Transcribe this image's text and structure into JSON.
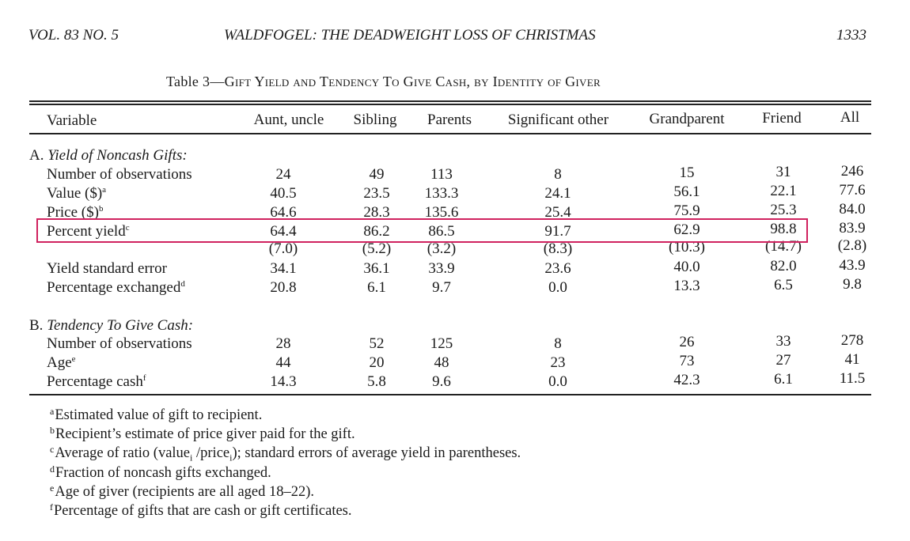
{
  "header": {
    "volume": "VOL. 83 NO. 5",
    "running_title": "WALDFOGEL: THE DEADWEIGHT LOSS OF CHRISTMAS",
    "page_number": "1333"
  },
  "caption": {
    "label": "Table 3",
    "dash": "—",
    "title": "Gift Yield and Tendency To Give Cash, by Identity of Giver"
  },
  "columns": [
    "Variable",
    "Aunt, uncle",
    "Sibling",
    "Parents",
    "Significant other",
    "Grandparent",
    "Friend",
    "All"
  ],
  "section_a": {
    "letter": "A. ",
    "title": "Yield of Noncash Gifts:",
    "rows": [
      {
        "label": "Number of observations",
        "sup": "",
        "values": [
          "24",
          "49",
          "113",
          "8",
          "15",
          "31",
          "246"
        ]
      },
      {
        "label": "Value ($)",
        "sup": "a",
        "values": [
          "40.5",
          "23.5",
          "133.3",
          "24.1",
          "56.1",
          "22.1",
          "77.6"
        ]
      },
      {
        "label": "Price ($)",
        "sup": "b",
        "values": [
          "64.6",
          "28.3",
          "135.6",
          "25.4",
          "75.9",
          "25.3",
          "84.0"
        ]
      },
      {
        "label": "Percent yield",
        "sup": "c",
        "values": [
          "64.4",
          "86.2",
          "86.5",
          "91.7",
          "62.9",
          "98.8",
          "83.9"
        ]
      },
      {
        "label": "",
        "sup": "",
        "values": [
          "(7.0)",
          "(5.2)",
          "(3.2)",
          "(8.3)",
          "(10.3)",
          "(14.7)",
          "(2.8)"
        ]
      },
      {
        "label": "Yield standard error",
        "sup": "",
        "values": [
          "34.1",
          "36.1",
          "33.9",
          "23.6",
          "40.0",
          "82.0",
          "43.9"
        ]
      },
      {
        "label": "Percentage exchanged",
        "sup": "d",
        "values": [
          "20.8",
          "6.1",
          "9.7",
          "0.0",
          "13.3",
          "6.5",
          "9.8"
        ]
      }
    ]
  },
  "section_b": {
    "letter": "B. ",
    "title": "Tendency To Give Cash:",
    "rows": [
      {
        "label": "Number of observations",
        "sup": "",
        "values": [
          "28",
          "52",
          "125",
          "8",
          "26",
          "33",
          "278"
        ]
      },
      {
        "label": "Age",
        "sup": "e",
        "values": [
          "44",
          "20",
          "48",
          "23",
          "73",
          "27",
          "41"
        ]
      },
      {
        "label": "Percentage cash",
        "sup": "f",
        "values": [
          "14.3",
          "5.8",
          "9.6",
          "0.0",
          "42.3",
          "6.1",
          "11.5"
        ]
      }
    ]
  },
  "footnotes": [
    {
      "mark": "a",
      "text": "Estimated value of gift to recipient."
    },
    {
      "mark": "b",
      "text": "Recipient’s estimate of price giver paid for the gift."
    },
    {
      "mark": "c",
      "text": "Average of ratio (value",
      "sub1": "i",
      "mid": " /price",
      "sub2": "i",
      "end": "); standard errors of average yield in parentheses."
    },
    {
      "mark": "d",
      "text": "Fraction of noncash gifts exchanged."
    },
    {
      "mark": "e",
      "text": "Age of giver (recipients are all aged 18–22)."
    },
    {
      "mark": "f",
      "text": "Percentage of gifts that are cash or gift certificates."
    }
  ],
  "highlight": {
    "row": "Percent yield",
    "color": "#d0215e"
  }
}
